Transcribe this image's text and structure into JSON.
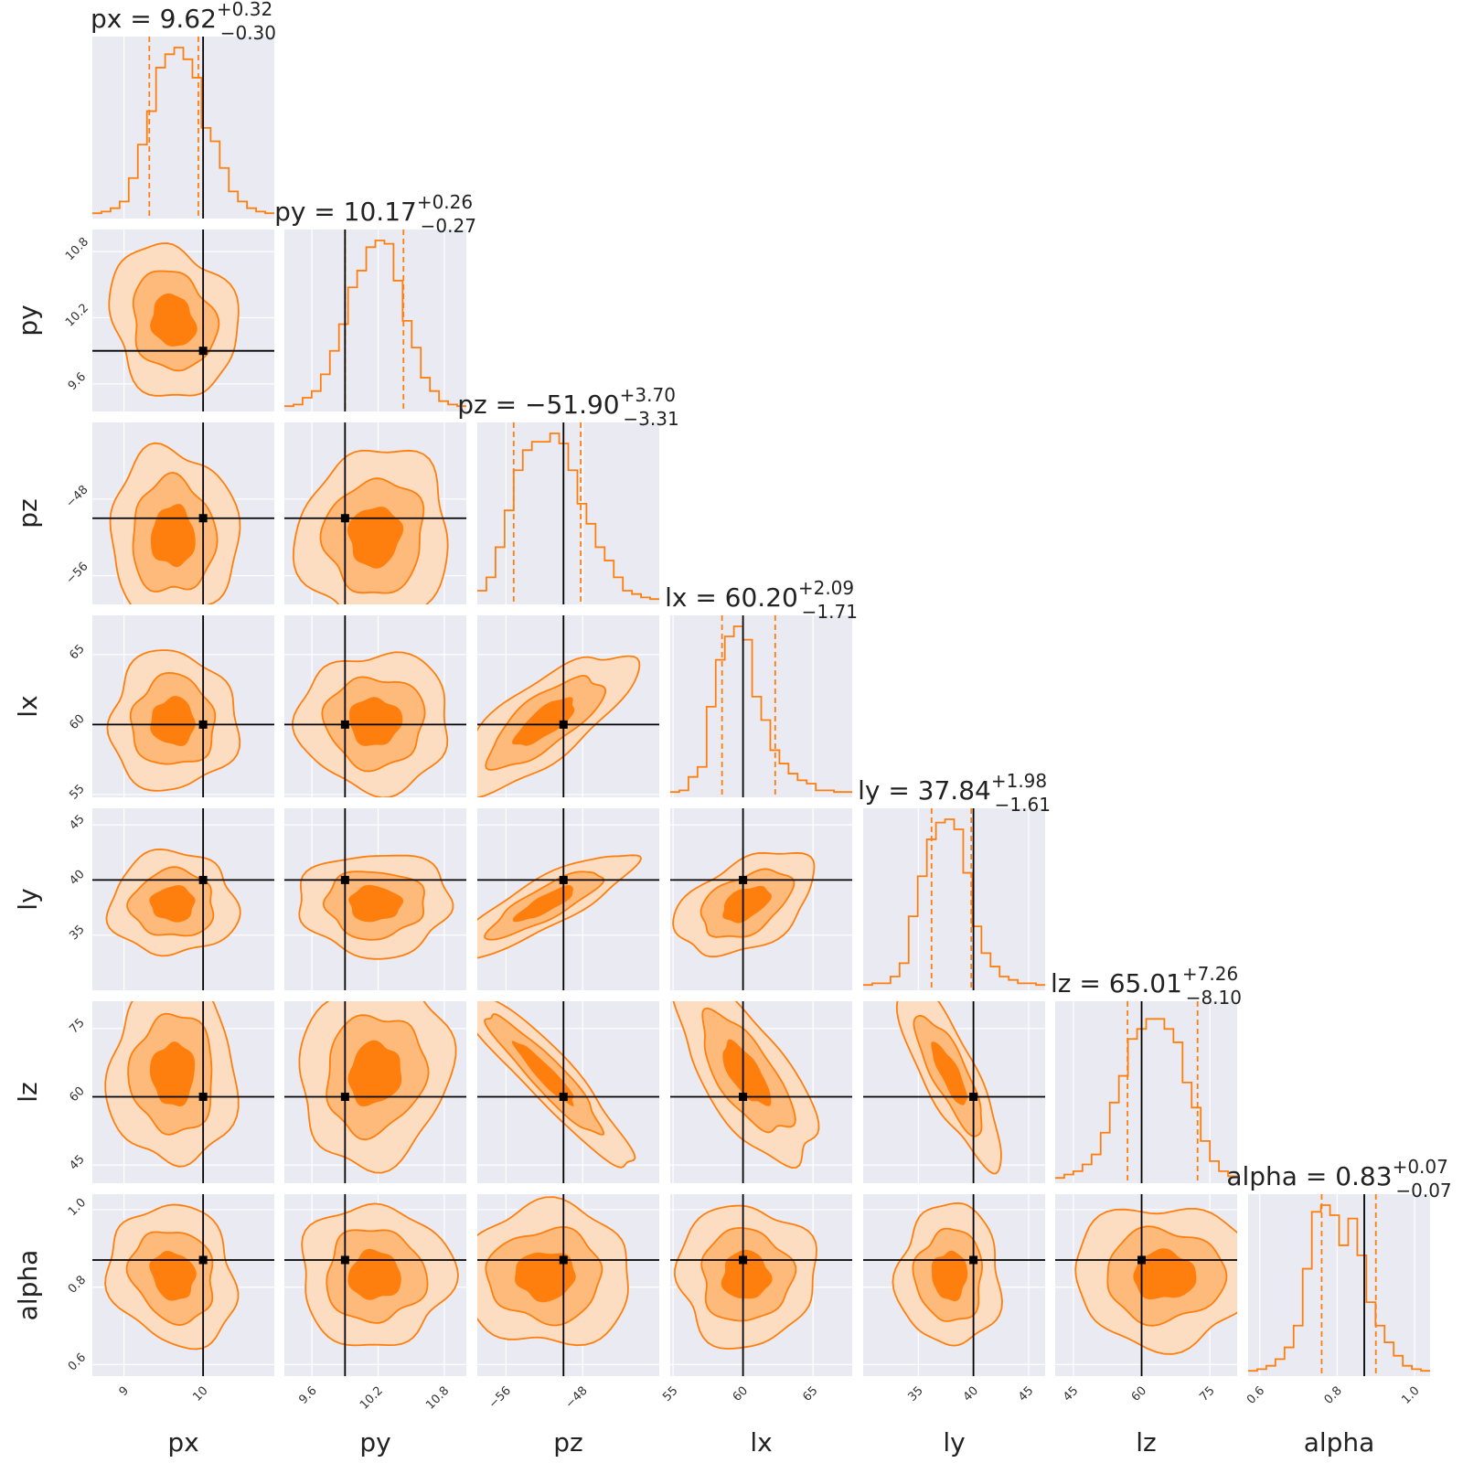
{
  "chart_data": {
    "type": "corner",
    "colors": {
      "accent": "#ff7f0e",
      "fill_dark": "#ff7f0e",
      "fill_mid": "#fdba7a",
      "fill_light": "#fdddc1",
      "truth": "#000000",
      "panel_bg": "#eaeaf2",
      "grid": "#ffffff"
    },
    "parameters": [
      {
        "name": "px",
        "label": "px",
        "title": {
          "prefix": "px = ",
          "value": "9.62",
          "plus": "+0.32",
          "minus": "−0.30"
        },
        "range": [
          8.6,
          10.9
        ],
        "ticks": [
          {
            "v": 9,
            "t": "9"
          },
          {
            "v": 10,
            "t": "10"
          }
        ],
        "truth": 10.0,
        "quantiles": [
          9.32,
          9.94
        ]
      },
      {
        "name": "py",
        "label": "py",
        "title": {
          "prefix": "py = ",
          "value": "10.17",
          "plus": "+0.26",
          "minus": "−0.27"
        },
        "range": [
          9.35,
          11.0
        ],
        "ticks": [
          {
            "v": 9.6,
            "t": "9.6"
          },
          {
            "v": 10.2,
            "t": "10.2"
          },
          {
            "v": 10.8,
            "t": "10.8"
          }
        ],
        "truth": 9.9,
        "quantiles": [
          9.9,
          10.43
        ]
      },
      {
        "name": "pz",
        "label": "pz",
        "title": {
          "prefix": "pz = ",
          "value": "−51.90",
          "plus": "+3.70",
          "minus": "−3.31"
        },
        "range": [
          -59.0,
          -40.0
        ],
        "ticks": [
          {
            "v": -56,
            "t": "−56"
          },
          {
            "v": -48,
            "t": "−48"
          }
        ],
        "truth": -50.0,
        "quantiles": [
          -55.2,
          -48.2
        ]
      },
      {
        "name": "lx",
        "label": "lx",
        "title": {
          "prefix": "lx = ",
          "value": "60.20",
          "plus": "+2.09",
          "minus": "−1.71"
        },
        "range": [
          54.8,
          67.8
        ],
        "ticks": [
          {
            "v": 55,
            "t": "55"
          },
          {
            "v": 60,
            "t": "60"
          },
          {
            "v": 65,
            "t": "65"
          }
        ],
        "truth": 60.0,
        "quantiles": [
          58.5,
          62.3
        ]
      },
      {
        "name": "ly",
        "label": "ly",
        "title": {
          "prefix": "ly = ",
          "value": "37.84",
          "plus": "+1.98",
          "minus": "−1.61"
        },
        "range": [
          30.0,
          46.5
        ],
        "ticks": [
          {
            "v": 35,
            "t": "35"
          },
          {
            "v": 40,
            "t": "40"
          },
          {
            "v": 45,
            "t": "45"
          }
        ],
        "truth": 40.0,
        "quantiles": [
          36.2,
          39.8
        ]
      },
      {
        "name": "lz",
        "label": "lz",
        "title": {
          "prefix": "lz = ",
          "value": "65.01",
          "plus": "+7.26",
          "minus": "−8.10"
        },
        "range": [
          41.0,
          81.0
        ],
        "ticks": [
          {
            "v": 45,
            "t": "45"
          },
          {
            "v": 60,
            "t": "60"
          },
          {
            "v": 75,
            "t": "75"
          }
        ],
        "truth": 60.0,
        "quantiles": [
          56.9,
          72.3
        ]
      },
      {
        "name": "alpha",
        "label": "alpha",
        "title": {
          "prefix": "alpha = ",
          "value": "0.83",
          "plus": "+0.07",
          "minus": "−0.07"
        },
        "range": [
          0.57,
          1.04
        ],
        "ticks": [
          {
            "v": 0.6,
            "t": "0.6"
          },
          {
            "v": 0.8,
            "t": "0.8"
          },
          {
            "v": 1.0,
            "t": "1.0"
          }
        ],
        "truth": 0.87,
        "quantiles": [
          0.76,
          0.9
        ]
      }
    ],
    "histograms": [
      {
        "param": "px",
        "counts": [
          0.01,
          0.02,
          0.04,
          0.08,
          0.22,
          0.42,
          0.62,
          0.88,
          0.96,
          1.0,
          0.93,
          0.82,
          0.52,
          0.44,
          0.28,
          0.14,
          0.08,
          0.04,
          0.02,
          0.01
        ]
      },
      {
        "param": "py",
        "counts": [
          0.01,
          0.02,
          0.06,
          0.1,
          0.2,
          0.34,
          0.5,
          0.72,
          0.82,
          0.96,
          1.0,
          0.98,
          0.76,
          0.52,
          0.36,
          0.18,
          0.1,
          0.04,
          0.02,
          0.01
        ]
      },
      {
        "param": "pz",
        "counts": [
          0.06,
          0.14,
          0.32,
          0.54,
          0.78,
          0.9,
          0.95,
          0.95,
          1.0,
          0.94,
          0.78,
          0.58,
          0.46,
          0.32,
          0.24,
          0.14,
          0.06,
          0.04,
          0.02,
          0.01
        ]
      },
      {
        "param": "lx",
        "counts": [
          0.01,
          0.02,
          0.1,
          0.16,
          0.52,
          0.8,
          0.94,
          1.0,
          0.92,
          0.58,
          0.44,
          0.26,
          0.18,
          0.12,
          0.08,
          0.06,
          0.02,
          0.02,
          0.01,
          0.01
        ]
      },
      {
        "param": "ly",
        "counts": [
          0.01,
          0.02,
          0.02,
          0.06,
          0.14,
          0.42,
          0.66,
          0.88,
          0.98,
          1.0,
          0.94,
          0.68,
          0.36,
          0.2,
          0.12,
          0.06,
          0.04,
          0.02,
          0.02,
          0.01
        ]
      },
      {
        "param": "lz",
        "counts": [
          0.01,
          0.03,
          0.05,
          0.09,
          0.15,
          0.28,
          0.46,
          0.62,
          0.84,
          0.9,
          0.96,
          0.96,
          0.9,
          0.82,
          0.58,
          0.43,
          0.23,
          0.11,
          0.05,
          0.02
        ]
      },
      {
        "param": "alpha",
        "counts": [
          0.01,
          0.02,
          0.04,
          0.08,
          0.15,
          0.28,
          0.62,
          0.96,
          1.0,
          0.94,
          0.76,
          0.92,
          0.7,
          0.42,
          0.28,
          0.18,
          0.1,
          0.04,
          0.02,
          0.01
        ]
      }
    ],
    "correlations": [
      {
        "pair": [
          "py",
          "px"
        ],
        "rho": -0.15
      },
      {
        "pair": [
          "pz",
          "px"
        ],
        "rho": 0.0
      },
      {
        "pair": [
          "pz",
          "py"
        ],
        "rho": 0.05
      },
      {
        "pair": [
          "lx",
          "px"
        ],
        "rho": 0.0
      },
      {
        "pair": [
          "lx",
          "py"
        ],
        "rho": 0.0
      },
      {
        "pair": [
          "lx",
          "pz"
        ],
        "rho": 0.75
      },
      {
        "pair": [
          "ly",
          "px"
        ],
        "rho": 0.0
      },
      {
        "pair": [
          "ly",
          "py"
        ],
        "rho": 0.0
      },
      {
        "pair": [
          "ly",
          "pz"
        ],
        "rho": 0.85
      },
      {
        "pair": [
          "ly",
          "lx"
        ],
        "rho": 0.45
      },
      {
        "pair": [
          "lz",
          "px"
        ],
        "rho": 0.0
      },
      {
        "pair": [
          "lz",
          "py"
        ],
        "rho": 0.1
      },
      {
        "pair": [
          "lz",
          "pz"
        ],
        "rho": -0.93
      },
      {
        "pair": [
          "lz",
          "lx"
        ],
        "rho": -0.7
      },
      {
        "pair": [
          "lz",
          "ly"
        ],
        "rho": -0.82
      },
      {
        "pair": [
          "alpha",
          "px"
        ],
        "rho": -0.15
      },
      {
        "pair": [
          "alpha",
          "py"
        ],
        "rho": 0.0
      },
      {
        "pair": [
          "alpha",
          "pz"
        ],
        "rho": 0.0
      },
      {
        "pair": [
          "alpha",
          "lx"
        ],
        "rho": 0.0
      },
      {
        "pair": [
          "alpha",
          "ly"
        ],
        "rho": 0.0
      },
      {
        "pair": [
          "alpha",
          "lz"
        ],
        "rho": 0.0
      }
    ],
    "contour_levels_sigma": [
      0.9,
      1.7,
      2.6
    ]
  }
}
